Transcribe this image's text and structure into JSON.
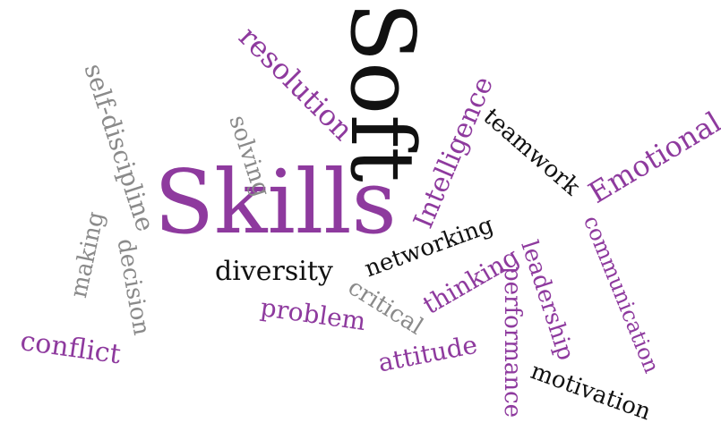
{
  "colors": {
    "purple": "#8e3a9e",
    "black": "#111111",
    "gray": "#8a8a8a"
  },
  "words": {
    "soft": "Soft",
    "skills": "Skills",
    "resolution": "resolution",
    "self_discipline": "self-discipline",
    "solving": "solving",
    "intelligence": "Intelligence",
    "teamwork": "teamwork",
    "emotional": "Emotional",
    "communication": "communication",
    "making": "making",
    "decision": "decision",
    "diversity": "diversity",
    "networking": "networking",
    "problem": "problem",
    "critical": "critical",
    "thinking": "thinking",
    "leadership": "leadership",
    "performance": "performance",
    "conflict": "conflict",
    "attitude": "attitude",
    "motivation": "motivation"
  }
}
